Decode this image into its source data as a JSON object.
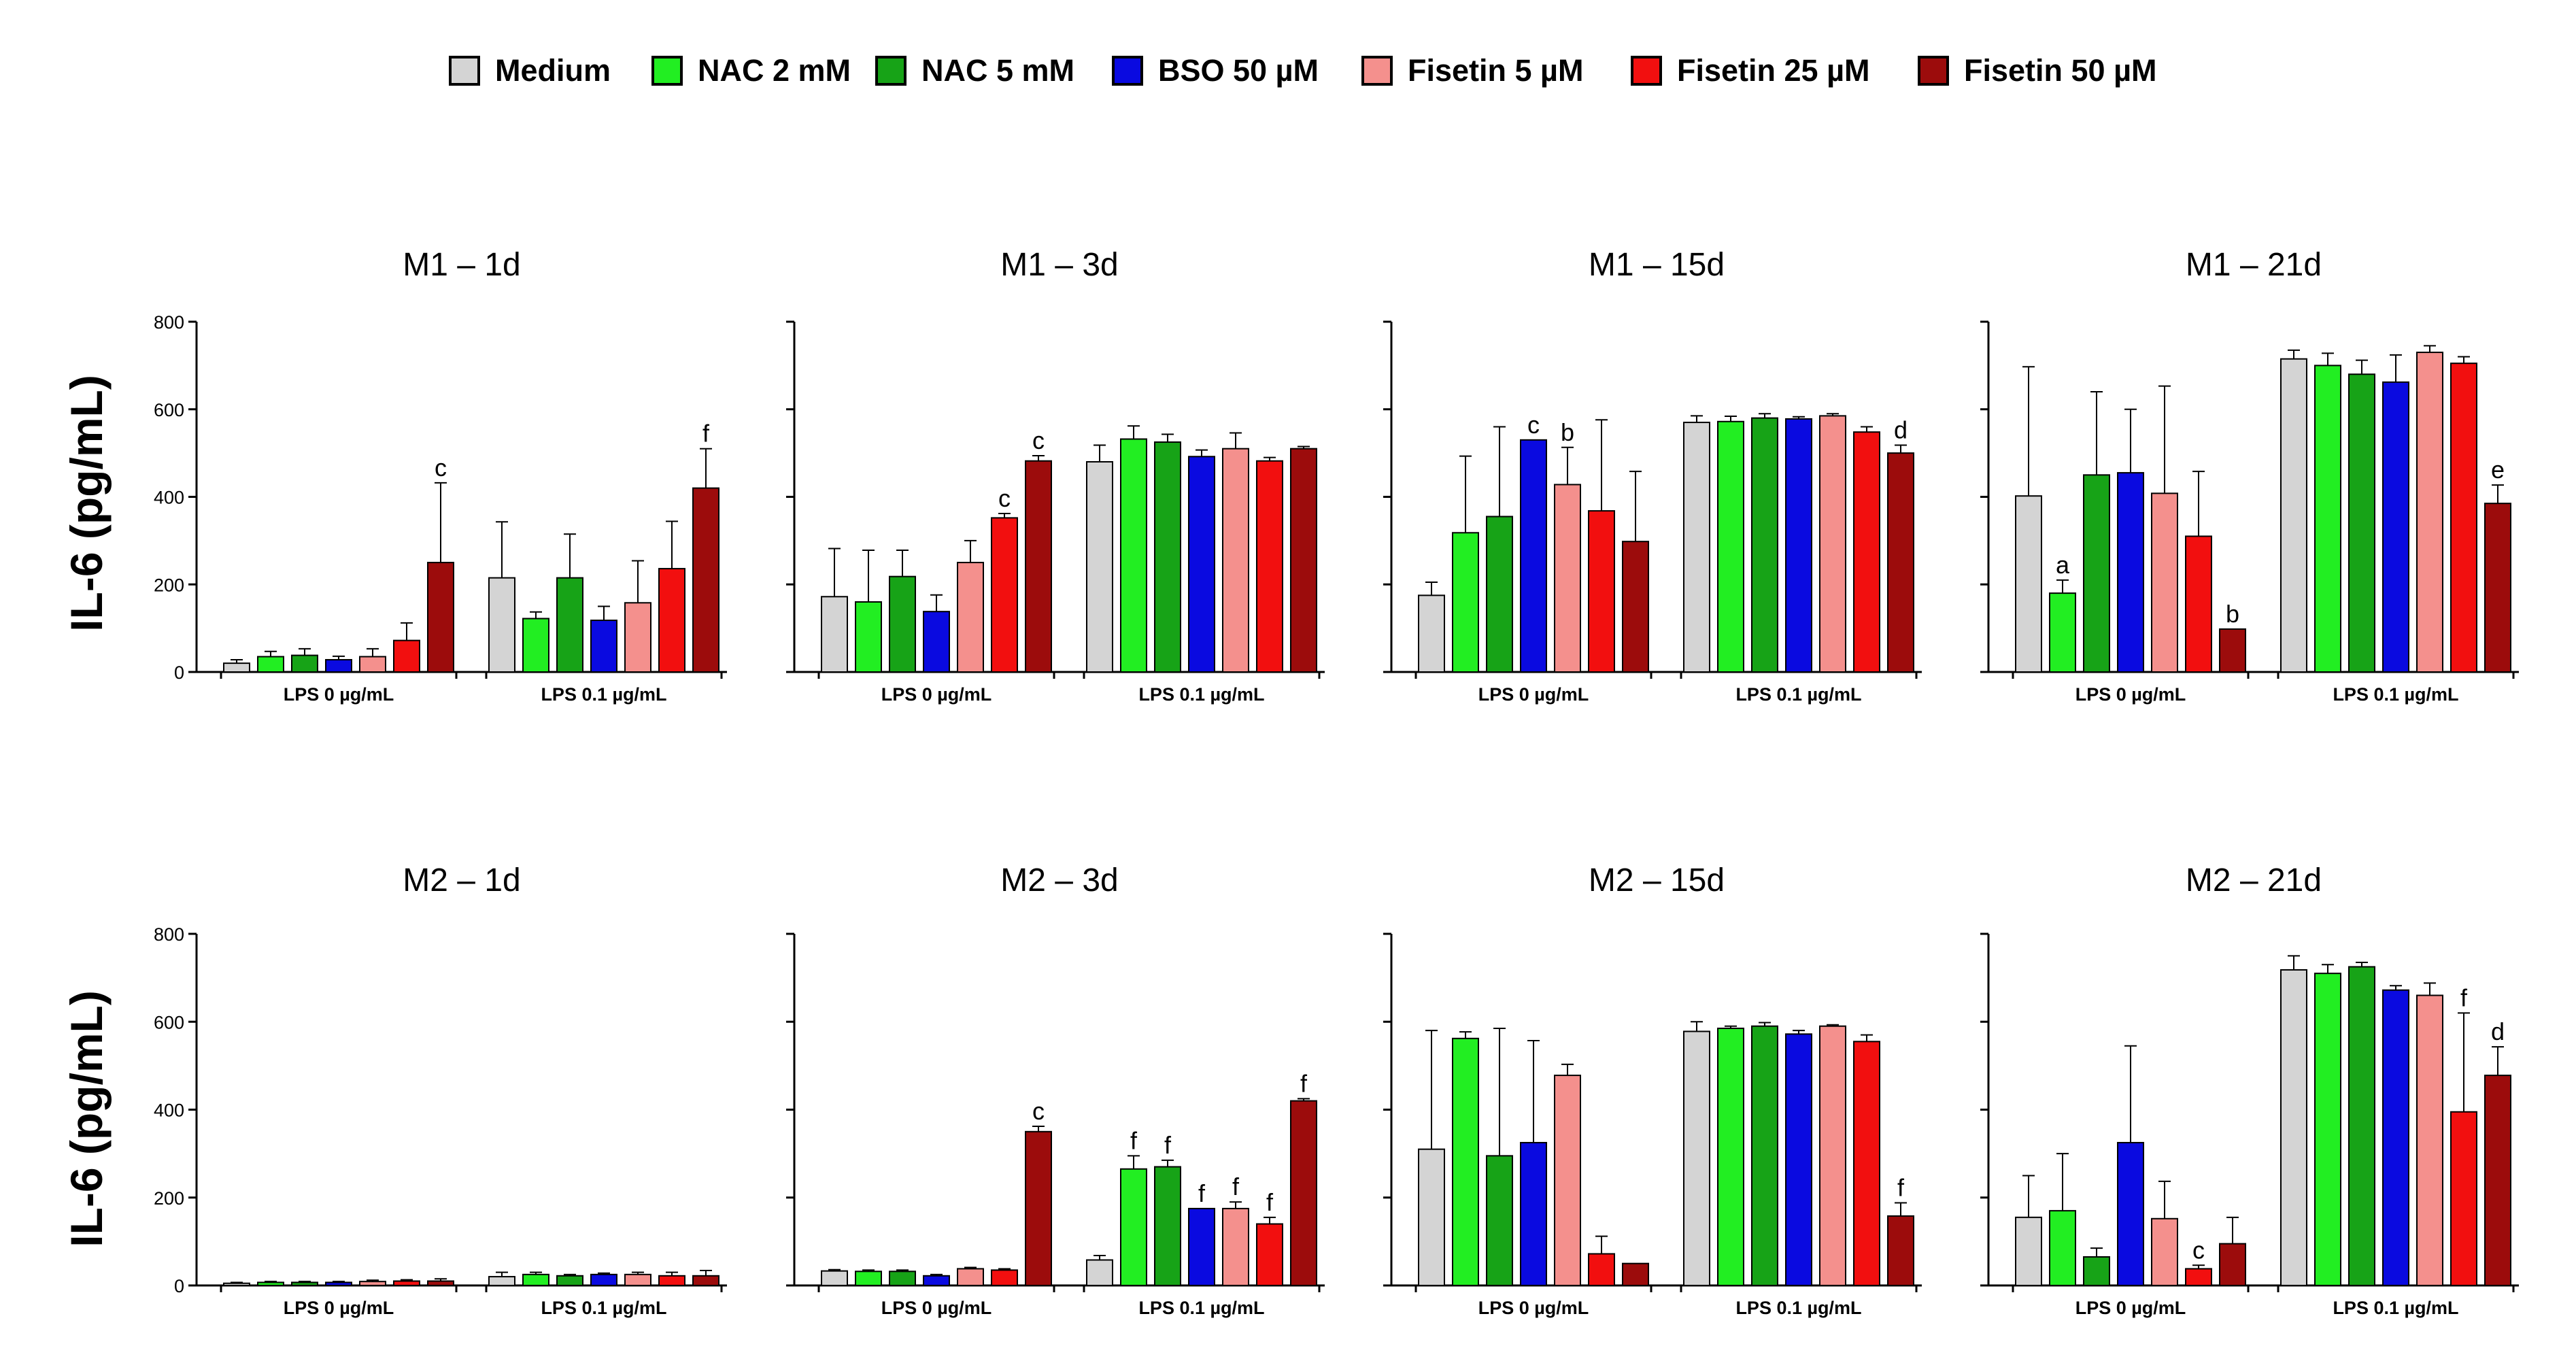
{
  "legend": [
    {
      "label": "Medium",
      "color": "#d4d4d4"
    },
    {
      "label": "NAC 2 mM",
      "color": "#22ee22"
    },
    {
      "label": "NAC 5 mM",
      "color": "#17a317"
    },
    {
      "label": "BSO 50 µM",
      "color": "#0a0ae0"
    },
    {
      "label": "Fisetin  5 µM",
      "color": "#f4908d"
    },
    {
      "label": "Fisetin  25 µM",
      "color": "#f20f0f"
    },
    {
      "label": "Fisetin  50 µM",
      "color": "#9c0c0c"
    }
  ],
  "ylabel": "IL-6 (pg/mL)",
  "chart_data": [
    {
      "type": "bar",
      "title": "M1 – 1d",
      "ylim": [
        0,
        800
      ],
      "yticks": [
        "0",
        "200",
        "400",
        "600",
        "800"
      ],
      "show_tick_labels": true,
      "categories": [
        "LPS 0 µg/mL",
        "LPS 0.1 µg/mL"
      ],
      "values": [
        [
          20,
          35,
          38,
          28,
          35,
          72,
          250
        ],
        [
          215,
          122,
          215,
          118,
          158,
          236,
          420
        ]
      ],
      "errors": [
        [
          8,
          12,
          15,
          8,
          18,
          40,
          182
        ],
        [
          128,
          15,
          100,
          32,
          96,
          108,
          90
        ]
      ],
      "annotations": [
        [
          "",
          "",
          "",
          "",
          "",
          "",
          "c"
        ],
        [
          "",
          "",
          "",
          "",
          "",
          "",
          "f"
        ]
      ]
    },
    {
      "type": "bar",
      "title": "M1 – 3d",
      "ylim": [
        0,
        800
      ],
      "yticks": [
        "0",
        "200",
        "400",
        "600",
        "800"
      ],
      "show_tick_labels": false,
      "categories": [
        "LPS 0 µg/mL",
        "LPS 0.1 µg/mL"
      ],
      "values": [
        [
          172,
          160,
          218,
          138,
          250,
          352,
          482
        ],
        [
          480,
          532,
          525,
          492,
          510,
          482,
          510
        ]
      ],
      "errors": [
        [
          110,
          118,
          60,
          38,
          50,
          10,
          12
        ],
        [
          38,
          30,
          18,
          15,
          36,
          8,
          5
        ]
      ],
      "annotations": [
        [
          "",
          "",
          "",
          "",
          "",
          "c",
          "c"
        ],
        [
          "",
          "",
          "",
          "",
          "",
          "",
          ""
        ]
      ]
    },
    {
      "type": "bar",
      "title": "M1 – 15d",
      "ylim": [
        0,
        800
      ],
      "yticks": [
        "0",
        "200",
        "400",
        "600",
        "800"
      ],
      "show_tick_labels": false,
      "categories": [
        "LPS 0 µg/mL",
        "LPS 0.1 µg/mL"
      ],
      "values": [
        [
          175,
          318,
          355,
          530,
          428,
          368,
          298
        ],
        [
          570,
          572,
          580,
          578,
          585,
          548,
          500
        ]
      ],
      "errors": [
        [
          30,
          175,
          205,
          0,
          85,
          208,
          160
        ],
        [
          15,
          12,
          10,
          5,
          5,
          12,
          18
        ]
      ],
      "annotations": [
        [
          "",
          "",
          "",
          "c",
          "b",
          "",
          ""
        ],
        [
          "",
          "",
          "",
          "",
          "",
          "",
          "d"
        ]
      ]
    },
    {
      "type": "bar",
      "title": "M1 – 21d",
      "ylim": [
        0,
        800
      ],
      "yticks": [
        "0",
        "200",
        "400",
        "600",
        "800"
      ],
      "show_tick_labels": false,
      "categories": [
        "LPS 0 µg/mL",
        "LPS 0.1 µg/mL"
      ],
      "values": [
        [
          402,
          180,
          450,
          455,
          408,
          310,
          98
        ],
        [
          715,
          700,
          680,
          662,
          730,
          705,
          385
        ]
      ],
      "errors": [
        [
          295,
          30,
          190,
          145,
          245,
          148,
          0
        ],
        [
          20,
          28,
          32,
          62,
          15,
          15,
          42
        ]
      ],
      "annotations": [
        [
          "",
          "a",
          "",
          "",
          "",
          "",
          "b"
        ],
        [
          "",
          "",
          "",
          "",
          "",
          "",
          "e"
        ]
      ]
    },
    {
      "type": "bar",
      "title": "M2 – 1d",
      "ylim": [
        0,
        800
      ],
      "yticks": [
        "0",
        "200",
        "400",
        "600",
        "800"
      ],
      "show_tick_labels": true,
      "categories": [
        "LPS 0 µg/mL",
        "LPS 0.1 µg/mL"
      ],
      "values": [
        [
          5,
          7,
          7,
          7,
          9,
          10,
          10
        ],
        [
          20,
          25,
          22,
          25,
          25,
          22,
          22
        ]
      ],
      "errors": [
        [
          2,
          2,
          2,
          2,
          3,
          3,
          5
        ],
        [
          10,
          5,
          3,
          3,
          5,
          8,
          12
        ]
      ],
      "annotations": [
        [
          "",
          "",
          "",
          "",
          "",
          "",
          ""
        ],
        [
          "",
          "",
          "",
          "",
          "",
          "",
          ""
        ]
      ]
    },
    {
      "type": "bar",
      "title": "M2 – 3d",
      "ylim": [
        0,
        800
      ],
      "yticks": [
        "0",
        "200",
        "400",
        "600",
        "800"
      ],
      "show_tick_labels": false,
      "categories": [
        "LPS 0 µg/mL",
        "LPS 0.1 µg/mL"
      ],
      "values": [
        [
          33,
          32,
          32,
          22,
          38,
          35,
          350
        ],
        [
          58,
          265,
          270,
          175,
          175,
          140,
          420
        ]
      ],
      "errors": [
        [
          3,
          3,
          3,
          3,
          3,
          3,
          12
        ],
        [
          10,
          30,
          15,
          0,
          15,
          15,
          5
        ]
      ],
      "annotations": [
        [
          "",
          "",
          "",
          "",
          "",
          "",
          "c"
        ],
        [
          "",
          "f",
          "f",
          "f",
          "f",
          "f",
          "f"
        ]
      ]
    },
    {
      "type": "bar",
      "title": "M2 – 15d",
      "ylim": [
        0,
        800
      ],
      "yticks": [
        "0",
        "200",
        "400",
        "600",
        "800"
      ],
      "show_tick_labels": false,
      "categories": [
        "LPS 0 µg/mL",
        "LPS 0.1 µg/mL"
      ],
      "values": [
        [
          310,
          562,
          295,
          325,
          478,
          72,
          50
        ],
        [
          578,
          585,
          590,
          572,
          590,
          555,
          158
        ]
      ],
      "errors": [
        [
          270,
          15,
          290,
          232,
          25,
          40,
          0
        ],
        [
          22,
          5,
          8,
          8,
          3,
          15,
          30
        ]
      ],
      "annotations": [
        [
          "",
          "",
          "",
          "",
          "",
          "",
          ""
        ],
        [
          "",
          "",
          "",
          "",
          "",
          "",
          "f"
        ]
      ]
    },
    {
      "type": "bar",
      "title": "M2 – 21d",
      "ylim": [
        0,
        800
      ],
      "yticks": [
        "0",
        "200",
        "400",
        "600",
        "800"
      ],
      "show_tick_labels": false,
      "categories": [
        "LPS 0 µg/mL",
        "LPS 0.1 µg/mL"
      ],
      "values": [
        [
          155,
          170,
          65,
          325,
          152,
          38,
          95
        ],
        [
          718,
          710,
          725,
          672,
          660,
          395,
          478
        ]
      ],
      "errors": [
        [
          95,
          130,
          20,
          220,
          85,
          8,
          60
        ],
        [
          32,
          20,
          10,
          10,
          28,
          225,
          65
        ]
      ],
      "annotations": [
        [
          "",
          "",
          "",
          "",
          "",
          "c",
          ""
        ],
        [
          "",
          "",
          "",
          "",
          "",
          "f",
          "d"
        ]
      ]
    }
  ]
}
